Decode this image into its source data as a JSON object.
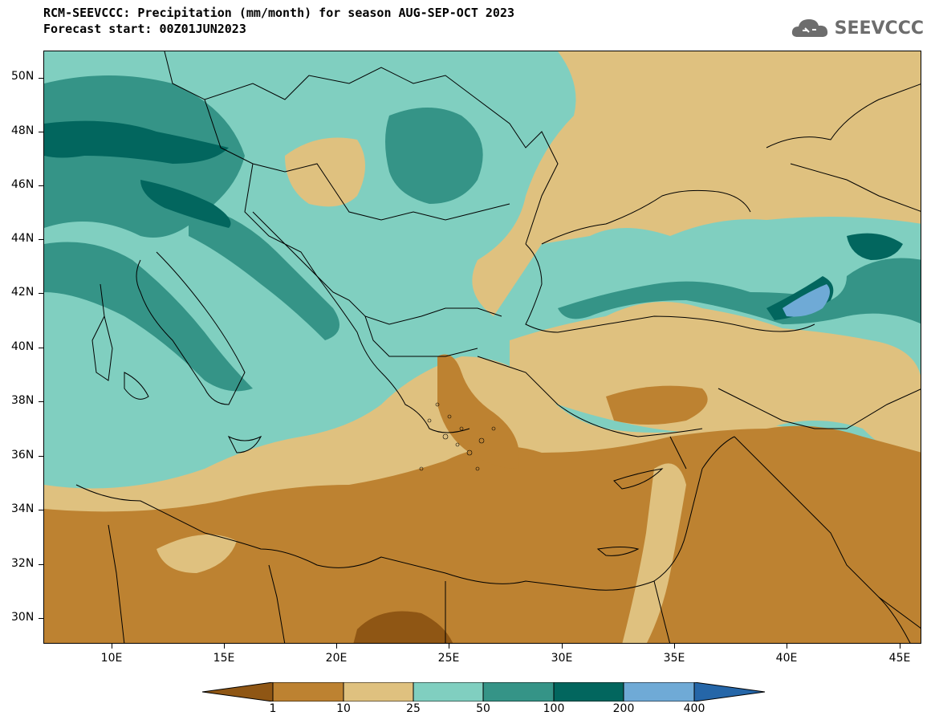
{
  "title": {
    "line1": "RCM-SEEVCCC: Precipitation (mm/month) for season AUG-SEP-OCT 2023",
    "line2": "Forecast start: 00Z01JUN2023"
  },
  "logo": {
    "text": "SEEVCCC",
    "icon": "cloud-icon"
  },
  "axes": {
    "lat_labels": [
      "50N",
      "48N",
      "46N",
      "44N",
      "42N",
      "40N",
      "38N",
      "36N",
      "34N",
      "32N",
      "30N"
    ],
    "lon_labels": [
      "10E",
      "15E",
      "20E",
      "25E",
      "30E",
      "35E",
      "40E",
      "45E"
    ]
  },
  "colorbar": {
    "labels": [
      "1",
      "10",
      "25",
      "50",
      "100",
      "200",
      "400"
    ],
    "colors": [
      "#8f5614",
      "#bd8231",
      "#dfc17f",
      "#80cfc0",
      "#359487",
      "#02665e",
      "#6faad6",
      "#2566a8"
    ]
  }
}
